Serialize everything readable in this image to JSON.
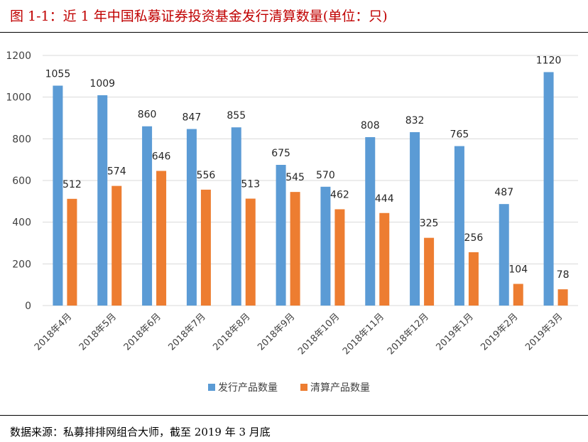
{
  "header": {
    "title": "图 1-1：近 1 年中国私募证券投资基金发行清算数量(单位：只)"
  },
  "footer": {
    "source": "数据来源：私募排排网组合大师，截至 2019 年 3 月底"
  },
  "chart_data": {
    "type": "bar",
    "title": "",
    "categories": [
      "2018年4月",
      "2018年5月",
      "2018年6月",
      "2018年7月",
      "2018年8月",
      "2018年9月",
      "2018年10月",
      "2018年11月",
      "2018年12月",
      "2019年1月",
      "2019年2月",
      "2019年3月"
    ],
    "series": [
      {
        "name": "发行产品数量",
        "color": "#5b9bd5",
        "values": [
          1055,
          1009,
          860,
          847,
          855,
          675,
          570,
          808,
          832,
          765,
          487,
          1120
        ]
      },
      {
        "name": "清算产品数量",
        "color": "#ed7d31",
        "values": [
          512,
          574,
          646,
          556,
          513,
          545,
          462,
          444,
          325,
          256,
          104,
          78
        ]
      }
    ],
    "ylim": [
      0,
      1200
    ],
    "yticks": [
      0,
      200,
      400,
      600,
      800,
      1000,
      1200
    ],
    "grid": true,
    "legend": "bottom"
  }
}
